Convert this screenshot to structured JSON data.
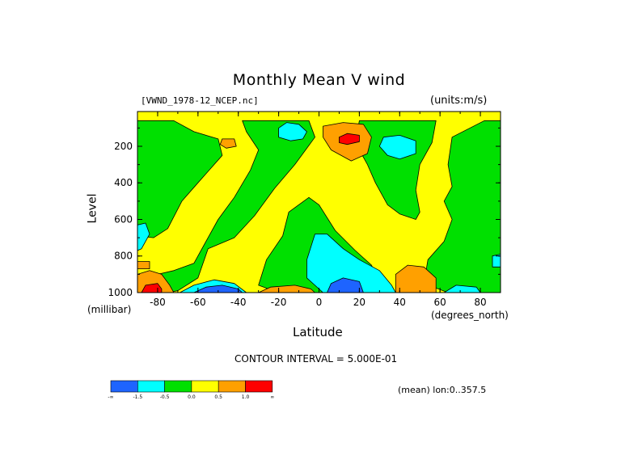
{
  "colors": {
    "blue": "#1e64ff",
    "cyan": "#00ffff",
    "green": "#00e000",
    "yellow": "#ffff00",
    "orange": "#ffa000",
    "red": "#ff0000",
    "contour_line": "#000000"
  },
  "chart_data": {
    "type": "heatmap",
    "title": "Monthly Mean V wind",
    "dataset_label": "[VWND_1978-12_NCEP.nc]",
    "units_label": "(units:m/s)",
    "xlabel": "Latitude",
    "x_unit": "(degrees_north)",
    "ylabel": "Level",
    "y_unit": "(millibar)",
    "xlim": [
      -90,
      90
    ],
    "ylim": [
      1000,
      10
    ],
    "x_ticks": [
      "-80",
      "-60",
      "-40",
      "-20",
      "0",
      "20",
      "40",
      "60",
      "80"
    ],
    "x_tick_values": [
      -80,
      -60,
      -40,
      -20,
      0,
      20,
      40,
      60,
      80
    ],
    "y_ticks": [
      "200",
      "400",
      "600",
      "800",
      "1000"
    ],
    "y_tick_values": [
      200,
      400,
      600,
      800,
      1000
    ],
    "contour_interval_label": "CONTOUR INTERVAL = 5.000E-01",
    "mean_label": "(mean) lon:0..357.5",
    "background_level": "yellow",
    "colorbar": {
      "colors": [
        "#1e64ff",
        "#00ffff",
        "#00e000",
        "#ffff00",
        "#ffa000",
        "#ff0000"
      ],
      "labels": [
        "-∞",
        "-1.5",
        "-0.5",
        "0.0",
        "0.5",
        "1.0",
        "∞"
      ]
    },
    "regions": [
      {
        "level": "green",
        "polys": [
          [
            [
              -90,
              60
            ],
            [
              -72,
              60
            ],
            [
              -62,
              120
            ],
            [
              -50,
              160
            ],
            [
              -48,
              250
            ],
            [
              -60,
              400
            ],
            [
              -68,
              500
            ],
            [
              -75,
              650
            ],
            [
              -82,
              700
            ],
            [
              -90,
              690
            ]
          ],
          [
            [
              -38,
              60
            ],
            [
              -20,
              60
            ],
            [
              -5,
              60
            ],
            [
              -2,
              150
            ],
            [
              -12,
              300
            ],
            [
              -22,
              430
            ],
            [
              -32,
              580
            ],
            [
              -42,
              700
            ],
            [
              -55,
              760
            ],
            [
              -60,
              920
            ],
            [
              -70,
              990
            ],
            [
              -75,
              1000
            ],
            [
              -90,
              1000
            ],
            [
              -90,
              920
            ],
            [
              -80,
              900
            ],
            [
              -72,
              880
            ],
            [
              -62,
              840
            ],
            [
              -56,
              720
            ],
            [
              -50,
              600
            ],
            [
              -42,
              480
            ],
            [
              -34,
              330
            ],
            [
              -30,
              220
            ],
            [
              -36,
              120
            ]
          ],
          [
            [
              -15,
              560
            ],
            [
              -5,
              480
            ],
            [
              0,
              520
            ],
            [
              8,
              660
            ],
            [
              18,
              770
            ],
            [
              26,
              850
            ],
            [
              30,
              940
            ],
            [
              34,
              1000
            ],
            [
              -20,
              1000
            ],
            [
              -30,
              960
            ],
            [
              -26,
              820
            ],
            [
              -18,
              690
            ]
          ],
          [
            [
              20,
              60
            ],
            [
              58,
              60
            ],
            [
              56,
              180
            ],
            [
              50,
              300
            ],
            [
              48,
              440
            ],
            [
              50,
              560
            ],
            [
              48,
              600
            ],
            [
              40,
              570
            ],
            [
              34,
              520
            ],
            [
              28,
              400
            ],
            [
              24,
              300
            ],
            [
              18,
              180
            ]
          ],
          [
            [
              66,
              150
            ],
            [
              82,
              60
            ],
            [
              90,
              60
            ],
            [
              90,
              1000
            ],
            [
              64,
              1000
            ],
            [
              52,
              950
            ],
            [
              54,
              820
            ],
            [
              62,
              720
            ],
            [
              66,
              600
            ],
            [
              62,
              500
            ],
            [
              66,
              420
            ],
            [
              64,
              300
            ]
          ]
        ]
      },
      {
        "level": "cyan",
        "polys": [
          [
            [
              -90,
              630
            ],
            [
              -86,
              620
            ],
            [
              -84,
              680
            ],
            [
              -88,
              760
            ],
            [
              -90,
              770
            ]
          ],
          [
            [
              -69,
              1000
            ],
            [
              -62,
              960
            ],
            [
              -52,
              930
            ],
            [
              -42,
              950
            ],
            [
              -36,
              1000
            ]
          ],
          [
            [
              -16,
              70
            ],
            [
              -10,
              80
            ],
            [
              -6,
              120
            ],
            [
              -8,
              160
            ],
            [
              -14,
              170
            ],
            [
              -20,
              150
            ],
            [
              -20,
              100
            ]
          ],
          [
            [
              -2,
              680
            ],
            [
              4,
              680
            ],
            [
              12,
              760
            ],
            [
              20,
              820
            ],
            [
              30,
              880
            ],
            [
              36,
              960
            ],
            [
              38,
              1000
            ],
            [
              2,
              1000
            ],
            [
              -6,
              920
            ],
            [
              -6,
              820
            ]
          ],
          [
            [
              32,
              150
            ],
            [
              40,
              140
            ],
            [
              48,
              170
            ],
            [
              48,
              240
            ],
            [
              40,
              270
            ],
            [
              34,
              250
            ],
            [
              30,
              200
            ]
          ],
          [
            [
              62,
              1000
            ],
            [
              68,
              960
            ],
            [
              78,
              970
            ],
            [
              80,
              1000
            ]
          ],
          [
            [
              86,
              800
            ],
            [
              90,
              790
            ],
            [
              90,
              860
            ],
            [
              86,
              860
            ]
          ]
        ]
      },
      {
        "level": "blue",
        "polys": [
          [
            [
              -62,
              1000
            ],
            [
              -56,
              970
            ],
            [
              -48,
              960
            ],
            [
              -40,
              980
            ],
            [
              -38,
              1000
            ]
          ],
          [
            [
              4,
              1000
            ],
            [
              6,
              950
            ],
            [
              12,
              920
            ],
            [
              20,
              940
            ],
            [
              22,
              1000
            ]
          ]
        ]
      },
      {
        "level": "orange",
        "polys": [
          [
            [
              -90,
              900
            ],
            [
              -84,
              880
            ],
            [
              -78,
              900
            ],
            [
              -74,
              960
            ],
            [
              -72,
              1000
            ],
            [
              -90,
              1000
            ]
          ],
          [
            [
              -48,
              160
            ],
            [
              -42,
              160
            ],
            [
              -41,
              200
            ],
            [
              -46,
              210
            ],
            [
              -49,
              190
            ]
          ],
          [
            [
              2,
              90
            ],
            [
              12,
              70
            ],
            [
              22,
              80
            ],
            [
              26,
              150
            ],
            [
              24,
              240
            ],
            [
              16,
              280
            ],
            [
              6,
              220
            ],
            [
              2,
              150
            ]
          ],
          [
            [
              -30,
              1000
            ],
            [
              -24,
              970
            ],
            [
              -12,
              960
            ],
            [
              -4,
              980
            ],
            [
              -2,
              1000
            ]
          ],
          [
            [
              38,
              1000
            ],
            [
              38,
              900
            ],
            [
              44,
              850
            ],
            [
              52,
              860
            ],
            [
              58,
              920
            ],
            [
              58,
              1000
            ]
          ],
          [
            [
              -90,
              830
            ],
            [
              -84,
              830
            ],
            [
              -84,
              870
            ],
            [
              -90,
              870
            ]
          ]
        ]
      },
      {
        "level": "red",
        "polys": [
          [
            [
              -88,
              1000
            ],
            [
              -86,
              960
            ],
            [
              -80,
              950
            ],
            [
              -78,
              980
            ],
            [
              -78,
              1000
            ]
          ],
          [
            [
              10,
              150
            ],
            [
              14,
              130
            ],
            [
              20,
              140
            ],
            [
              20,
              175
            ],
            [
              14,
              190
            ],
            [
              10,
              180
            ]
          ]
        ]
      }
    ]
  }
}
